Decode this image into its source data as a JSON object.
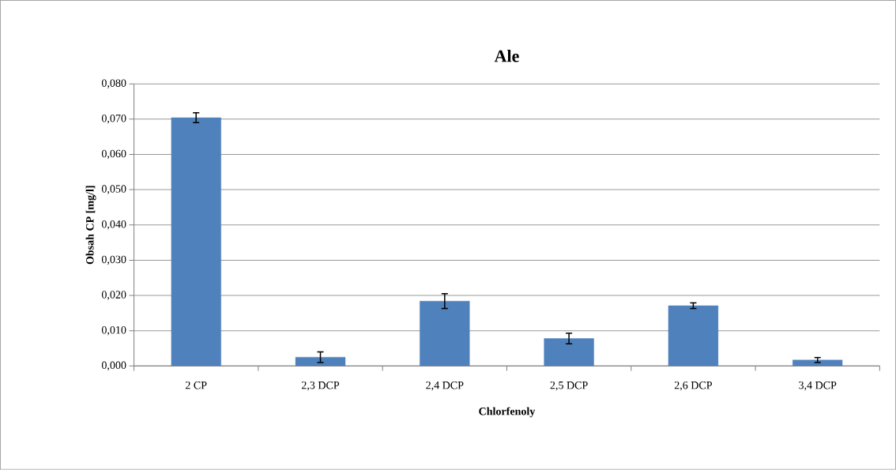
{
  "chart_data": {
    "type": "bar",
    "title": "Ale",
    "xlabel": "Chlorfenoly",
    "ylabel": "Obsah CP [mg/l]",
    "categories": [
      "2 CP",
      "2,3 DCP",
      "2,4 DCP",
      "2,5 DCP",
      "2,6 DCP",
      "3,4 DCP"
    ],
    "values": [
      0.0704,
      0.0025,
      0.0184,
      0.0078,
      0.0171,
      0.0017
    ],
    "errors": [
      0.0014,
      0.0015,
      0.0021,
      0.0015,
      0.0008,
      0.0007
    ],
    "color": "#4f81bd",
    "grid": "y",
    "ylim": [
      0,
      0.08
    ],
    "yticks": [
      {
        "value": 0,
        "label": "0,000"
      },
      {
        "value": 0.01,
        "label": "0,010"
      },
      {
        "value": 0.02,
        "label": "0,020"
      },
      {
        "value": 0.03,
        "label": "0,030"
      },
      {
        "value": 0.04,
        "label": "0,040"
      },
      {
        "value": 0.05,
        "label": "0,050"
      },
      {
        "value": 0.06,
        "label": "0,060"
      },
      {
        "value": 0.07,
        "label": "0,070"
      },
      {
        "value": 0.08,
        "label": "0,080"
      }
    ]
  }
}
